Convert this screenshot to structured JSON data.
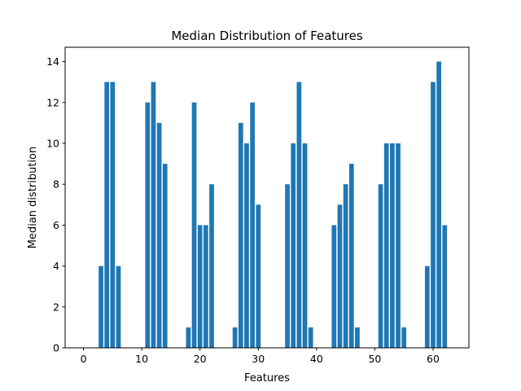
{
  "chart_data": {
    "type": "bar",
    "title": "Median Distribution of Features",
    "xlabel": "Features",
    "ylabel": "Median distribution",
    "xlim": [
      -3.15,
      66.15
    ],
    "ylim": [
      0,
      14.7
    ],
    "xticks": [
      0,
      10,
      20,
      30,
      40,
      50,
      60
    ],
    "yticks": [
      0,
      2,
      4,
      6,
      8,
      10,
      12,
      14
    ],
    "bar_width": 0.8,
    "color": "#1f77b4",
    "grid": false,
    "legend": "none",
    "x": [
      0,
      1,
      2,
      3,
      4,
      5,
      6,
      7,
      8,
      9,
      10,
      11,
      12,
      13,
      14,
      15,
      16,
      17,
      18,
      19,
      20,
      21,
      22,
      23,
      24,
      25,
      26,
      27,
      28,
      29,
      30,
      31,
      32,
      33,
      34,
      35,
      36,
      37,
      38,
      39,
      40,
      41,
      42,
      43,
      44,
      45,
      46,
      47,
      48,
      49,
      50,
      51,
      52,
      53,
      54,
      55,
      56,
      57,
      58,
      59,
      60,
      61,
      62,
      63
    ],
    "values": [
      0,
      0,
      0,
      4,
      13,
      13,
      4,
      0,
      0,
      0,
      0,
      12,
      13,
      11,
      9,
      0,
      0,
      0,
      1,
      12,
      6,
      6,
      8,
      0,
      0,
      0,
      1,
      11,
      10,
      12,
      7,
      0,
      0,
      0,
      0,
      8,
      10,
      13,
      10,
      1,
      0,
      0,
      0,
      6,
      7,
      8,
      9,
      1,
      0,
      0,
      0,
      8,
      10,
      10,
      10,
      1,
      0,
      0,
      0,
      4,
      13,
      14,
      6,
      0
    ]
  }
}
